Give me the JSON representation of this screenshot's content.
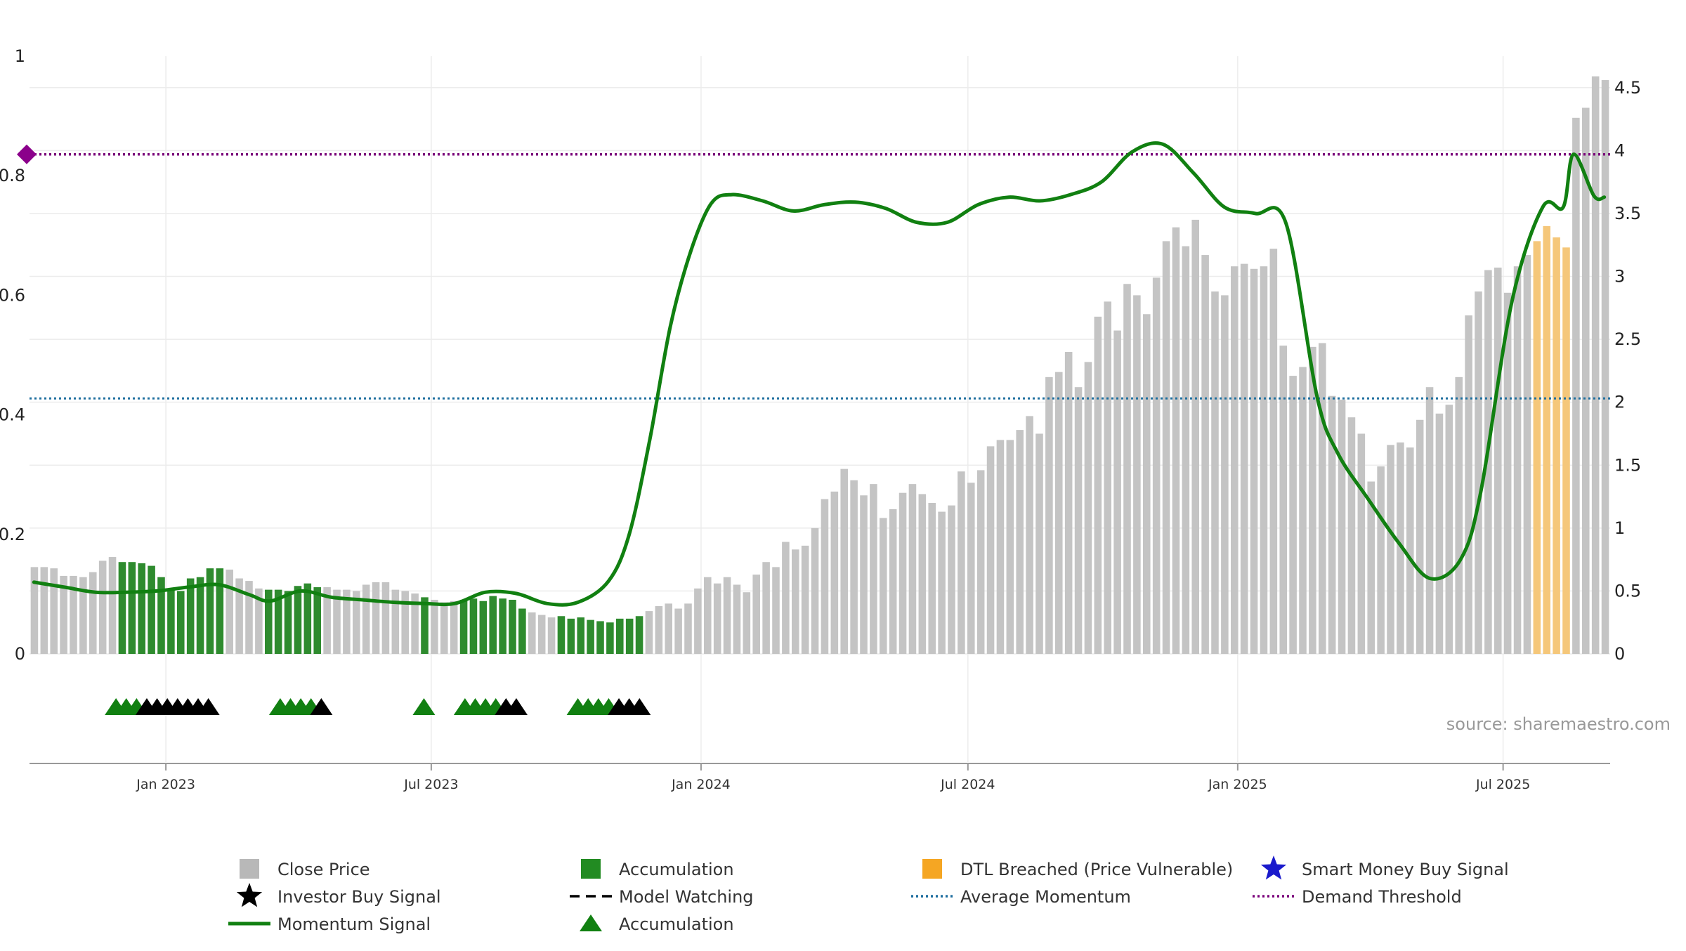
{
  "chart_data": {
    "type": "bar",
    "source": "source: sharemaestro.com",
    "colors": {
      "close": "#c4c4c4",
      "accumulation_bar": "#2e8b2e",
      "dtl": "#f5c77a",
      "momentum": "#118011",
      "average": "#1f6f9f",
      "demand": "#7a007a",
      "grid": "#ececec",
      "marker_green": "#118011",
      "marker_black": "#000000",
      "diamond": "#8b008b"
    },
    "left_axis": {
      "ylim": [
        0,
        1
      ],
      "ticks": [
        0,
        0.2,
        0.4,
        0.6,
        0.8,
        1
      ],
      "tick_labels": [
        "0",
        "0.2",
        "0.4",
        "0.6",
        "0.8",
        "1"
      ]
    },
    "right_axis": {
      "ylim": [
        0,
        4.75
      ],
      "ticks": [
        0,
        0.5,
        1,
        1.5,
        2,
        2.5,
        3,
        3.5,
        4,
        4.5
      ],
      "tick_labels": [
        "0",
        "0.5",
        "1",
        "1.5",
        "2",
        "2.5",
        "3",
        "3.5",
        "4",
        "4.5"
      ]
    },
    "x_axis": {
      "start": "2022-09-30",
      "end": "2025-09-12",
      "ticks": [
        {
          "date": "2023-01-01",
          "label": "Jan 2023"
        },
        {
          "date": "2023-07-01",
          "label": "Jul 2023"
        },
        {
          "date": "2024-01-01",
          "label": "Jan 2024"
        },
        {
          "date": "2024-07-01",
          "label": "Jul 2024"
        },
        {
          "date": "2025-01-01",
          "label": "Jan 2025"
        },
        {
          "date": "2025-07-01",
          "label": "Jul 2025"
        }
      ]
    },
    "close_price": [
      0.69,
      0.69,
      0.68,
      0.62,
      0.62,
      0.61,
      0.65,
      0.74,
      0.77,
      0.73,
      0.73,
      0.72,
      0.7,
      0.61,
      0.52,
      0.5,
      0.6,
      0.61,
      0.68,
      0.68,
      0.67,
      0.6,
      0.58,
      0.52,
      0.51,
      0.51,
      0.5,
      0.54,
      0.56,
      0.53,
      0.53,
      0.51,
      0.51,
      0.5,
      0.55,
      0.57,
      0.57,
      0.51,
      0.5,
      0.48,
      0.45,
      0.43,
      0.41,
      0.42,
      0.43,
      0.44,
      0.42,
      0.46,
      0.44,
      0.43,
      0.36,
      0.33,
      0.31,
      0.29,
      0.3,
      0.28,
      0.29,
      0.27,
      0.26,
      0.25,
      0.28,
      0.28,
      0.3,
      0.34,
      0.38,
      0.4,
      0.36,
      0.4,
      0.52,
      0.61,
      0.56,
      0.61,
      0.55,
      0.49,
      0.63,
      0.73,
      0.69,
      0.89,
      0.83,
      0.86,
      1.0,
      1.23,
      1.29,
      1.47,
      1.38,
      1.26,
      1.35,
      1.08,
      1.15,
      1.28,
      1.35,
      1.27,
      1.2,
      1.13,
      1.18,
      1.45,
      1.36,
      1.46,
      1.65,
      1.7,
      1.7,
      1.78,
      1.89,
      1.75,
      2.2,
      2.24,
      2.4,
      2.12,
      2.32,
      2.68,
      2.8,
      2.57,
      2.94,
      2.85,
      2.7,
      2.99,
      3.28,
      3.39,
      3.24,
      3.45,
      3.17,
      2.88,
      2.85,
      3.08,
      3.1,
      3.06,
      3.08,
      3.22,
      2.45,
      2.21,
      2.28,
      2.44,
      2.47,
      2.05,
      2.02,
      1.88,
      1.75,
      1.37,
      1.49,
      1.66,
      1.68,
      1.64,
      1.86,
      2.12,
      1.91,
      1.98,
      2.2,
      2.69,
      2.88,
      3.05,
      3.07,
      2.87,
      3.08,
      3.17,
      3.28,
      3.4,
      3.31,
      3.23,
      4.26,
      4.34,
      4.59,
      4.56
    ],
    "accumulation_indices": [
      9,
      10,
      11,
      12,
      13,
      14,
      15,
      16,
      17,
      18,
      19,
      24,
      25,
      26,
      27,
      28,
      29,
      40,
      44,
      45,
      46,
      47,
      48,
      49,
      50,
      54,
      55,
      56,
      57,
      58,
      59,
      60,
      61,
      62
    ],
    "dtl_indices": [
      154,
      155,
      156,
      157
    ],
    "momentum": [
      [
        "2022-10-03",
        0.57
      ],
      [
        "2022-10-24",
        0.53
      ],
      [
        "2022-11-14",
        0.49
      ],
      [
        "2022-12-05",
        0.49
      ],
      [
        "2022-12-26",
        0.5
      ],
      [
        "2023-01-16",
        0.53
      ],
      [
        "2023-02-06",
        0.55
      ],
      [
        "2023-02-27",
        0.47
      ],
      [
        "2023-03-13",
        0.42
      ],
      [
        "2023-04-03",
        0.5
      ],
      [
        "2023-04-24",
        0.45
      ],
      [
        "2023-05-15",
        0.43
      ],
      [
        "2023-06-05",
        0.41
      ],
      [
        "2023-06-26",
        0.4
      ],
      [
        "2023-07-17",
        0.4
      ],
      [
        "2023-08-07",
        0.49
      ],
      [
        "2023-08-28",
        0.48
      ],
      [
        "2023-09-18",
        0.4
      ],
      [
        "2023-10-09",
        0.41
      ],
      [
        "2023-10-30",
        0.58
      ],
      [
        "2023-11-13",
        0.95
      ],
      [
        "2023-11-27",
        1.7
      ],
      [
        "2023-12-11",
        2.6
      ],
      [
        "2023-12-25",
        3.2
      ],
      [
        "2024-01-08",
        3.58
      ],
      [
        "2024-01-22",
        3.65
      ],
      [
        "2024-02-12",
        3.6
      ],
      [
        "2024-03-04",
        3.52
      ],
      [
        "2024-03-25",
        3.57
      ],
      [
        "2024-04-15",
        3.59
      ],
      [
        "2024-05-06",
        3.54
      ],
      [
        "2024-05-27",
        3.43
      ],
      [
        "2024-06-17",
        3.43
      ],
      [
        "2024-07-08",
        3.57
      ],
      [
        "2024-07-29",
        3.63
      ],
      [
        "2024-08-19",
        3.6
      ],
      [
        "2024-09-09",
        3.65
      ],
      [
        "2024-09-30",
        3.75
      ],
      [
        "2024-10-21",
        3.99
      ],
      [
        "2024-11-11",
        4.05
      ],
      [
        "2024-12-02",
        3.82
      ],
      [
        "2024-12-23",
        3.55
      ],
      [
        "2025-01-13",
        3.5
      ],
      [
        "2025-02-03",
        3.42
      ],
      [
        "2025-02-24",
        2.05
      ],
      [
        "2025-03-10",
        1.6
      ],
      [
        "2025-03-31",
        1.23
      ],
      [
        "2025-04-21",
        0.88
      ],
      [
        "2025-05-12",
        0.6
      ],
      [
        "2025-06-02",
        0.75
      ],
      [
        "2025-06-16",
        1.3
      ],
      [
        "2025-07-07",
        2.8
      ],
      [
        "2025-07-28",
        3.55
      ],
      [
        "2025-08-11",
        3.55
      ],
      [
        "2025-08-18",
        3.97
      ],
      [
        "2025-09-01",
        3.64
      ],
      [
        "2025-09-08",
        3.63
      ]
    ],
    "average_momentum": 2.03,
    "demand_threshold": 3.97,
    "signal_markers": [
      [
        "2022-11-28",
        "acc"
      ],
      [
        "2022-12-05",
        "acc"
      ],
      [
        "2022-12-12",
        "acc"
      ],
      [
        "2022-12-19",
        "buy"
      ],
      [
        "2022-12-26",
        "buy"
      ],
      [
        "2023-01-02",
        "buy"
      ],
      [
        "2023-01-09",
        "buy"
      ],
      [
        "2023-01-16",
        "buy"
      ],
      [
        "2023-01-23",
        "buy"
      ],
      [
        "2023-01-30",
        "buy"
      ],
      [
        "2023-03-20",
        "acc"
      ],
      [
        "2023-03-27",
        "acc"
      ],
      [
        "2023-04-03",
        "acc"
      ],
      [
        "2023-04-10",
        "acc"
      ],
      [
        "2023-04-17",
        "buy"
      ],
      [
        "2023-06-26",
        "acc"
      ],
      [
        "2023-07-24",
        "acc"
      ],
      [
        "2023-07-31",
        "acc"
      ],
      [
        "2023-08-07",
        "acc"
      ],
      [
        "2023-08-14",
        "acc"
      ],
      [
        "2023-08-21",
        "buy"
      ],
      [
        "2023-08-28",
        "buy"
      ],
      [
        "2023-10-09",
        "acc"
      ],
      [
        "2023-10-16",
        "acc"
      ],
      [
        "2023-10-23",
        "acc"
      ],
      [
        "2023-10-30",
        "acc"
      ],
      [
        "2023-11-06",
        "buy"
      ],
      [
        "2023-11-13",
        "buy"
      ],
      [
        "2023-11-20",
        "buy"
      ]
    ],
    "legend": [
      {
        "label": "Close Price",
        "icon": "square",
        "color": "#b8b8b8"
      },
      {
        "label": "Accumulation",
        "icon": "square",
        "color": "#228b22"
      },
      {
        "label": "DTL Breached (Price Vulnerable)",
        "icon": "square",
        "color": "#f5a623"
      },
      {
        "label": "Smart Money Buy Signal",
        "icon": "star",
        "color": "#1a1acc"
      },
      {
        "label": "Investor Buy Signal",
        "icon": "star",
        "color": "#000000"
      },
      {
        "label": "Model Watching",
        "icon": "dash",
        "color": "#000000"
      },
      {
        "label": "Average Momentum",
        "icon": "dotline",
        "color": "#1f6f9f"
      },
      {
        "label": "Demand Threshold",
        "icon": "dotline",
        "color": "#7a007a"
      },
      {
        "label": "Momentum Signal",
        "icon": "line",
        "color": "#118011"
      },
      {
        "label": "Accumulation",
        "icon": "triangle",
        "color": "#118011"
      }
    ]
  }
}
